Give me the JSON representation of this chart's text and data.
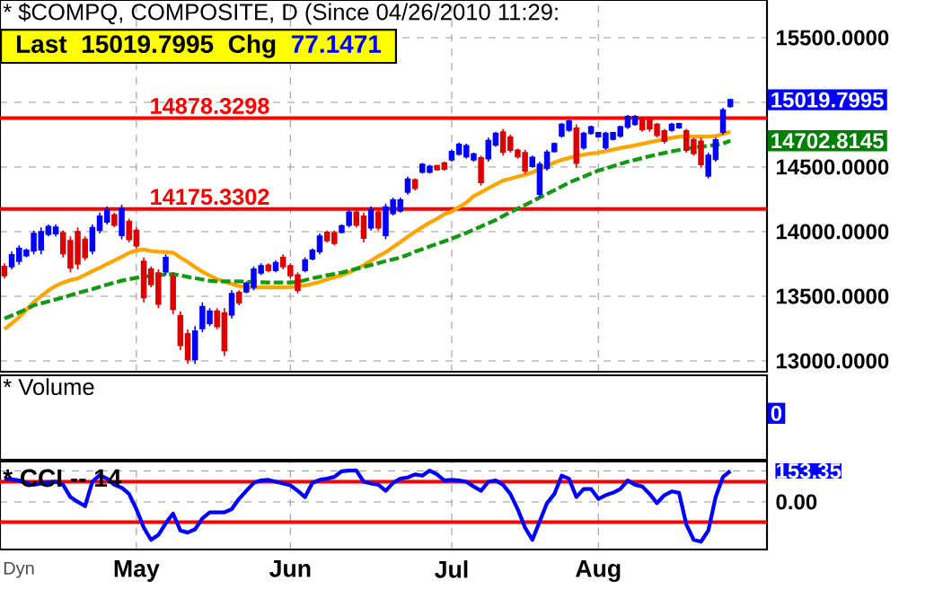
{
  "chart_data": [
    {
      "type": "candlestick",
      "title": "* $COMPQ, COMPOSITE, D (Since 04/26/2010 11:29:",
      "categories": [
        null,
        null,
        null,
        null,
        null,
        null,
        null,
        null,
        null,
        null,
        null,
        null,
        null,
        null,
        null,
        null,
        null,
        null,
        null,
        null,
        null,
        null,
        null,
        null,
        null,
        null,
        null,
        null,
        null,
        null,
        null,
        null,
        null,
        null,
        null,
        null,
        null,
        null,
        null,
        null,
        null,
        null,
        null,
        null,
        null,
        null,
        null,
        null,
        null,
        null,
        null,
        null,
        null,
        null,
        null,
        null,
        null,
        null,
        null,
        null,
        null,
        null,
        null,
        null,
        null,
        null,
        null,
        null,
        null,
        null,
        null,
        null,
        null,
        null,
        null,
        null,
        null,
        null,
        null,
        null,
        null,
        null,
        null,
        null,
        null,
        null,
        null,
        null,
        null,
        null,
        null,
        null,
        null,
        null,
        null,
        null,
        null,
        null,
        null,
        null
      ],
      "tick_labels": "y",
      "grid": true,
      "ylim": [
        12916,
        15792
      ],
      "yticks": [
        {
          "value": 13000,
          "label": "13000.0000"
        },
        {
          "value": 13500,
          "label": "13500.0000"
        },
        {
          "value": 14000,
          "label": "14000.0000"
        },
        {
          "value": 14500,
          "label": "14500.0000"
        },
        {
          "value": 15000,
          "label": null
        },
        {
          "value": 15500,
          "label": "15500.0000"
        }
      ],
      "ohlc": [
        [
          13730,
          13754,
          13638,
          13660
        ],
        [
          13730,
          13847,
          13708,
          13820
        ],
        [
          13770,
          13893,
          13745,
          13870
        ],
        [
          13815,
          13870,
          13800,
          13855
        ],
        [
          13850,
          14009,
          13824,
          13985
        ],
        [
          13860,
          14032,
          13824,
          14000
        ],
        [
          13980,
          14055,
          13963,
          14040
        ],
        [
          13985,
          14055,
          13963,
          14035
        ],
        [
          13990,
          14009,
          13800,
          13830
        ],
        [
          13930,
          13963,
          13685,
          13720
        ],
        [
          14000,
          14032,
          13708,
          13750
        ],
        [
          13940,
          13963,
          13777,
          13800
        ],
        [
          13850,
          14055,
          13824,
          14030
        ],
        [
          14010,
          14148,
          13986,
          14120
        ],
        [
          14075,
          14194,
          14055,
          14170
        ],
        [
          14130,
          14148,
          14032,
          14050
        ],
        [
          13970,
          14208,
          13940,
          14180
        ],
        [
          14080,
          14101,
          13916,
          13940
        ],
        [
          14010,
          14032,
          13870,
          13890
        ],
        [
          13770,
          13800,
          13453,
          13490
        ],
        [
          13710,
          13731,
          13569,
          13590
        ],
        [
          13680,
          13708,
          13407,
          13440
        ],
        [
          13690,
          13824,
          13662,
          13800
        ],
        [
          13650,
          13685,
          13361,
          13400
        ],
        [
          13350,
          13384,
          13083,
          13120
        ],
        [
          13210,
          13245,
          12976,
          13010
        ],
        [
          13010,
          13268,
          12976,
          13230
        ],
        [
          13250,
          13453,
          13222,
          13420
        ],
        [
          13290,
          13407,
          13268,
          13385
        ],
        [
          13385,
          13407,
          13245,
          13265
        ],
        [
          13370,
          13407,
          13037,
          13080
        ],
        [
          13355,
          13546,
          13328,
          13520
        ],
        [
          13530,
          13546,
          13430,
          13450
        ],
        [
          13535,
          13615,
          13523,
          13600
        ],
        [
          13570,
          13731,
          13546,
          13710
        ],
        [
          13680,
          13754,
          13662,
          13735
        ],
        [
          13740,
          13754,
          13685,
          13700
        ],
        [
          13700,
          13777,
          13685,
          13760
        ],
        [
          13800,
          13824,
          13708,
          13730
        ],
        [
          13735,
          13754,
          13638,
          13660
        ],
        [
          13665,
          13685,
          13523,
          13545
        ],
        [
          13700,
          13800,
          13685,
          13780
        ],
        [
          13790,
          13870,
          13777,
          13855
        ],
        [
          13845,
          13986,
          13824,
          13965
        ],
        [
          13995,
          14009,
          13916,
          13930
        ],
        [
          13990,
          14009,
          13893,
          13910
        ],
        [
          13995,
          14055,
          13986,
          14045
        ],
        [
          14050,
          14171,
          14032,
          14150
        ],
        [
          14150,
          14171,
          14032,
          14050
        ],
        [
          14120,
          14148,
          13916,
          13950
        ],
        [
          14030,
          14194,
          14009,
          14170
        ],
        [
          14150,
          14171,
          14009,
          14030
        ],
        [
          13970,
          14217,
          13940,
          14190
        ],
        [
          14140,
          14264,
          14125,
          14245
        ],
        [
          14160,
          14264,
          14148,
          14245
        ],
        [
          14305,
          14426,
          14287,
          14405
        ],
        [
          14400,
          14412,
          14319,
          14335
        ],
        [
          14460,
          14532,
          14449,
          14520
        ],
        [
          14460,
          14518,
          14449,
          14505
        ],
        [
          14510,
          14518,
          14472,
          14480
        ],
        [
          14530,
          14542,
          14472,
          14485
        ],
        [
          14555,
          14634,
          14542,
          14620
        ],
        [
          14600,
          14690,
          14588,
          14675
        ],
        [
          14580,
          14680,
          14565,
          14665
        ],
        [
          14555,
          14611,
          14542,
          14600
        ],
        [
          14570,
          14588,
          14356,
          14380
        ],
        [
          14565,
          14727,
          14542,
          14705
        ],
        [
          14670,
          14773,
          14657,
          14760
        ],
        [
          14770,
          14796,
          14588,
          14615
        ],
        [
          14730,
          14750,
          14611,
          14630
        ],
        [
          14630,
          14643,
          14565,
          14580
        ],
        [
          14610,
          14634,
          14449,
          14470
        ],
        [
          14505,
          14588,
          14495,
          14575
        ],
        [
          14290,
          14542,
          14264,
          14520
        ],
        [
          14490,
          14634,
          14472,
          14615
        ],
        [
          14620,
          14690,
          14611,
          14680
        ],
        [
          14740,
          14842,
          14727,
          14830
        ],
        [
          14785,
          14866,
          14773,
          14855
        ],
        [
          14800,
          14829,
          14495,
          14530
        ],
        [
          14650,
          14773,
          14634,
          14760
        ],
        [
          14760,
          14819,
          14750,
          14810
        ],
        [
          14735,
          14773,
          14727,
          14765
        ],
        [
          14650,
          14773,
          14634,
          14760
        ],
        [
          14715,
          14773,
          14704,
          14765
        ],
        [
          14740,
          14819,
          14727,
          14810
        ],
        [
          14810,
          14903,
          14796,
          14890
        ],
        [
          14830,
          14903,
          14819,
          14890
        ],
        [
          14875,
          14889,
          14773,
          14790
        ],
        [
          14870,
          14889,
          14773,
          14795
        ],
        [
          14830,
          14842,
          14727,
          14745
        ],
        [
          14780,
          14796,
          14680,
          14700
        ],
        [
          14785,
          14842,
          14773,
          14830
        ],
        [
          14805,
          14842,
          14796,
          14835
        ],
        [
          14780,
          14796,
          14611,
          14630
        ],
        [
          14710,
          14727,
          14588,
          14605
        ],
        [
          14700,
          14727,
          14495,
          14520
        ],
        [
          14430,
          14611,
          14412,
          14590
        ],
        [
          14560,
          14727,
          14542,
          14710
        ],
        [
          14770,
          14958,
          14750,
          14940
        ],
        [
          14970,
          15028,
          14958,
          15019.7995
        ]
      ],
      "series": [
        {
          "type": "line",
          "color": "#ffa500",
          "values": [
            13245,
            13290,
            13338,
            13395,
            13455,
            13500,
            13545,
            13580,
            13605,
            13625,
            13638,
            13665,
            13695,
            13720,
            13750,
            13777,
            13805,
            13835,
            13855,
            13861,
            13850,
            13845,
            13842,
            13838,
            13800,
            13765,
            13725,
            13690,
            13660,
            13632,
            13612,
            13595,
            13578,
            13572,
            13569,
            13569,
            13569,
            13569,
            13569,
            13570,
            13576,
            13583,
            13597,
            13610,
            13630,
            13648,
            13662,
            13685,
            13712,
            13740,
            13775,
            13810,
            13840,
            13880,
            13920,
            13960,
            14000,
            14035,
            14070,
            14100,
            14135,
            14155,
            14190,
            14225,
            14275,
            14305,
            14335,
            14365,
            14395,
            14410,
            14425,
            14440,
            14458,
            14485,
            14510,
            14535,
            14555,
            14570,
            14585,
            14595,
            14605,
            14611,
            14622,
            14635,
            14647,
            14657,
            14668,
            14680,
            14692,
            14703,
            14715,
            14725,
            14735,
            14736,
            14736,
            14736,
            14736,
            14740,
            14755,
            14773
          ]
        },
        {
          "type": "line",
          "color": "#119911",
          "line_style": "dashed",
          "values": [
            13328,
            13350,
            13375,
            13400,
            13430,
            13445,
            13460,
            13475,
            13490,
            13508,
            13525,
            13540,
            13555,
            13572,
            13590,
            13605,
            13620,
            13632,
            13643,
            13652,
            13657,
            13662,
            13667,
            13671,
            13662,
            13650,
            13640,
            13630,
            13620,
            13615,
            13615,
            13615,
            13615,
            13612,
            13610,
            13608,
            13606,
            13606,
            13606,
            13606,
            13610,
            13625,
            13640,
            13650,
            13662,
            13673,
            13683,
            13697,
            13712,
            13727,
            13742,
            13757,
            13772,
            13785,
            13800,
            13820,
            13845,
            13865,
            13885,
            13905,
            13925,
            13945,
            13968,
            13990,
            14015,
            14040,
            14065,
            14090,
            14120,
            14150,
            14178,
            14206,
            14235,
            14264,
            14292,
            14320,
            14350,
            14380,
            14402,
            14425,
            14450,
            14472,
            14489,
            14506,
            14524,
            14541,
            14555,
            14569,
            14583,
            14597,
            14609,
            14620,
            14632,
            14643,
            14650,
            14657,
            14664,
            14671,
            14681,
            14702.8145
          ]
        }
      ],
      "ref_lines": [
        {
          "axis": "y",
          "value": 14878.3298,
          "label": "14878.3298",
          "color": "#ff0000"
        },
        {
          "axis": "y",
          "value": 14175.3302,
          "label": "14175.3302",
          "color": "#ff0000"
        }
      ],
      "annotations": [
        "Last",
        "15019.7995",
        "Chg",
        "77.1471",
        "15019.7995",
        "14702.8145"
      ]
    },
    {
      "type": "other",
      "title": "* Volume",
      "annotations": [
        "0"
      ]
    },
    {
      "type": "line",
      "title": "* CCI -- 14",
      "categories": [
        null,
        null,
        null,
        null,
        null,
        null,
        null,
        null,
        null,
        null,
        null,
        null,
        null,
        null,
        null,
        null,
        null,
        null,
        "May",
        null,
        null,
        null,
        null,
        null,
        null,
        null,
        null,
        null,
        null,
        null,
        null,
        null,
        null,
        null,
        null,
        null,
        null,
        null,
        null,
        "Jun",
        null,
        null,
        null,
        null,
        null,
        null,
        null,
        null,
        null,
        null,
        null,
        null,
        null,
        null,
        null,
        null,
        null,
        null,
        null,
        null,
        null,
        "Jul",
        null,
        null,
        null,
        null,
        null,
        null,
        null,
        null,
        null,
        null,
        null,
        null,
        null,
        null,
        null,
        null,
        null,
        null,
        null,
        "Aug",
        null,
        null,
        null,
        null,
        null,
        null,
        null,
        null,
        null,
        null,
        null,
        null,
        null,
        null,
        null,
        null,
        null,
        null
      ],
      "grid": true,
      "ylim": [
        -236,
        200
      ],
      "yticks": [
        {
          "value": 0,
          "label": "0.00"
        },
        {
          "value": 153.35,
          "label": "153.35"
        }
      ],
      "series": [
        {
          "color": "#0000ff",
          "values": [
            115,
            112,
            106,
            94,
            85,
            91,
            97,
            100,
            85,
            24,
            0,
            -21,
            100,
            133,
            115,
            85,
            70,
            39,
            -36,
            -127,
            -188,
            -164,
            -106,
            -58,
            -142,
            -152,
            -136,
            -82,
            -52,
            -52,
            -52,
            -36,
            15,
            55,
            94,
            106,
            109,
            100,
            91,
            82,
            55,
            24,
            94,
            109,
            115,
            124,
            152,
            155,
            155,
            100,
            91,
            85,
            55,
            94,
            115,
            121,
            136,
            130,
            155,
            136,
            106,
            109,
            106,
            100,
            76,
            55,
            100,
            106,
            85,
            39,
            -36,
            -127,
            -188,
            -97,
            -6,
            39,
            130,
            115,
            24,
            64,
            64,
            15,
            33,
            45,
            64,
            106,
            85,
            76,
            39,
            -6,
            33,
            52,
            45,
            -112,
            -188,
            -197,
            -142,
            24,
            124,
            153.35
          ]
        }
      ],
      "ref_lines": [
        {
          "axis": "y",
          "value": 100,
          "color": "#ff0000"
        },
        {
          "axis": "y",
          "value": -100,
          "color": "#ff0000"
        }
      ],
      "annotations": [
        "Dyn"
      ]
    }
  ]
}
